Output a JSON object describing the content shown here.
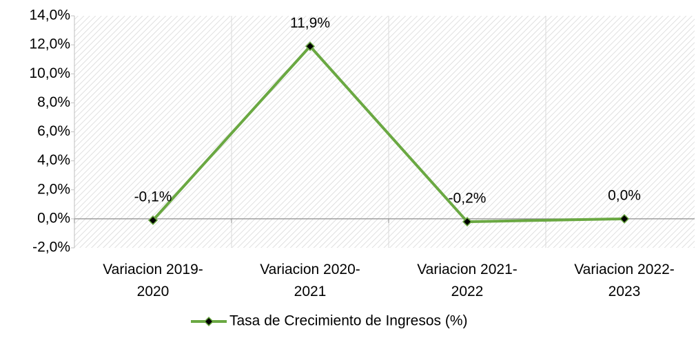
{
  "chart_data": {
    "type": "line",
    "categories": [
      "Variacion 2019-2020",
      "Variacion 2020-2021",
      "Variacion 2021-2022",
      "Variacion 2022-2023"
    ],
    "series": [
      {
        "name": "Tasa de Crecimiento de Ingresos (%)",
        "color": "#6aa842",
        "values": [
          -0.1,
          11.9,
          -0.2,
          0.0
        ],
        "value_labels": [
          "-0,1%",
          "11,9%",
          "-0,2%",
          "0,0%"
        ]
      }
    ],
    "ylim": [
      -2,
      14
    ],
    "yticks": [
      {
        "value": -2,
        "label": "-2,0%"
      },
      {
        "value": 0,
        "label": "0,0%"
      },
      {
        "value": 2,
        "label": "2,0%"
      },
      {
        "value": 4,
        "label": "4,0%"
      },
      {
        "value": 6,
        "label": "6,0%"
      },
      {
        "value": 8,
        "label": "8,0%"
      },
      {
        "value": 10,
        "label": "10,0%"
      },
      {
        "value": 12,
        "label": "12,0%"
      },
      {
        "value": 14,
        "label": "14,0%"
      }
    ],
    "legend": "bottom"
  }
}
